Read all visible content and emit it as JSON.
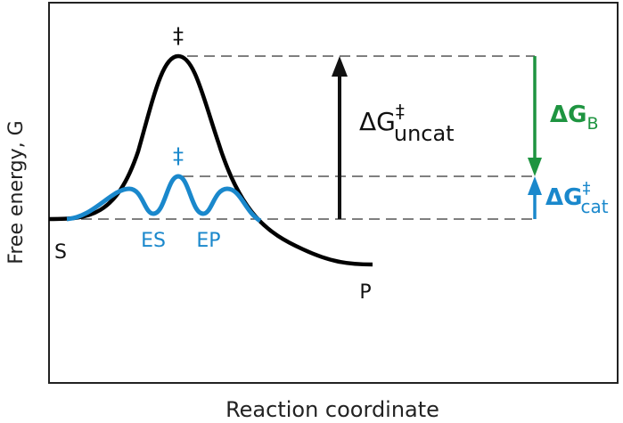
{
  "axes": {
    "ylabel": "Free energy, G",
    "xlabel": "Reaction coordinate"
  },
  "labels": {
    "ts_uncat": "‡",
    "ts_cat": "‡",
    "substrate": "S",
    "product": "P",
    "es": "ES",
    "ep": "EP",
    "dg_uncat": {
      "delta": "ΔG",
      "sup": "‡",
      "sub": "uncat"
    },
    "dg_b": {
      "delta": "ΔG",
      "sub": "B"
    },
    "dg_cat": {
      "delta": "ΔG",
      "sup": "‡",
      "sub": "cat"
    }
  },
  "colors": {
    "uncatalyzed": "#000000",
    "catalyzed": "#1a88cc",
    "binding": "#1e9440",
    "guide": "#555555"
  }
}
